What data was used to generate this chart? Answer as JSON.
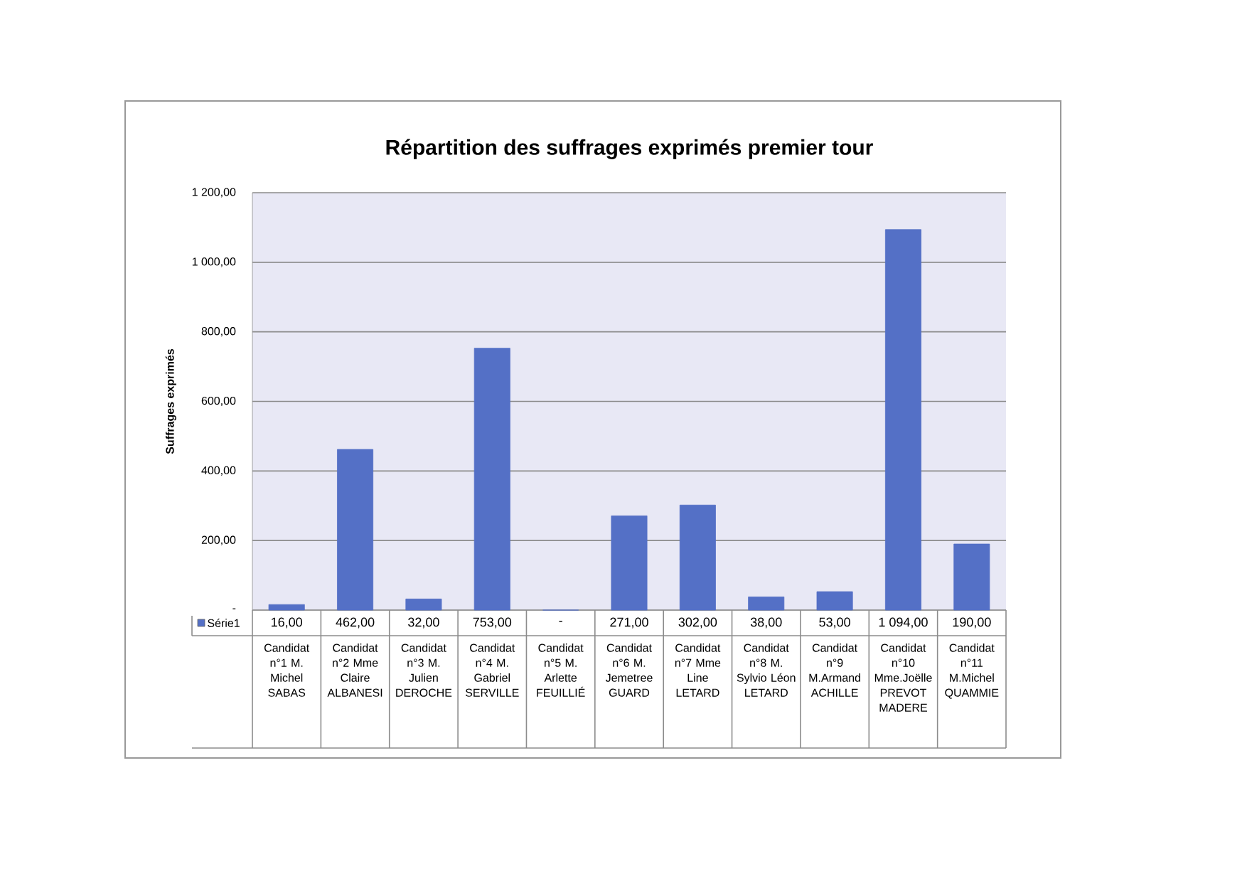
{
  "chart_data": {
    "type": "bar",
    "title": "Répartition des suffrages exprimés premier tour",
    "ylabel": "Suffrages exprimés",
    "categories": [
      "Candidat n°1 M. Michel SABAS",
      "Candidat n°2 Mme Claire ALBANESI",
      "Candidat n°3 M. Julien DEROCHE",
      "Candidat n°4 M. Gabriel SERVILLE",
      "Candidat n°5 M. Arlette FEUILLIÉ",
      "Candidat n°6 M. Jemetree GUARD",
      "Candidat n°7 Mme Line LETARD",
      "Candidat n°8 M. Sylvio Léon LETARD",
      "Candidat n°9 M.Armand ACHILLE",
      "Candidat n°10 Mme.Joëlle PREVOT MADERE",
      "Candidat n°11 M.Michel QUAMMIE"
    ],
    "series": [
      {
        "name": "Série1",
        "color": "#5470c6",
        "values": [
          16,
          462,
          32,
          753,
          0,
          271,
          302,
          38,
          53,
          1094,
          190
        ],
        "value_labels": [
          "16,00",
          "462,00",
          "32,00",
          "753,00",
          "-",
          "271,00",
          "302,00",
          "38,00",
          "53,00",
          "1 094,00",
          "190,00"
        ]
      }
    ],
    "ylim": [
      0,
      1200
    ],
    "yticks": [
      {
        "value": 0,
        "label": "-"
      },
      {
        "value": 200,
        "label": "200,00"
      },
      {
        "value": 400,
        "label": "400,00"
      },
      {
        "value": 600,
        "label": "600,00"
      },
      {
        "value": 800,
        "label": "800,00"
      },
      {
        "value": 1000,
        "label": "1 000,00"
      },
      {
        "value": 1200,
        "label": "1 200,00"
      }
    ],
    "grid": "y",
    "legend": "bottom"
  }
}
